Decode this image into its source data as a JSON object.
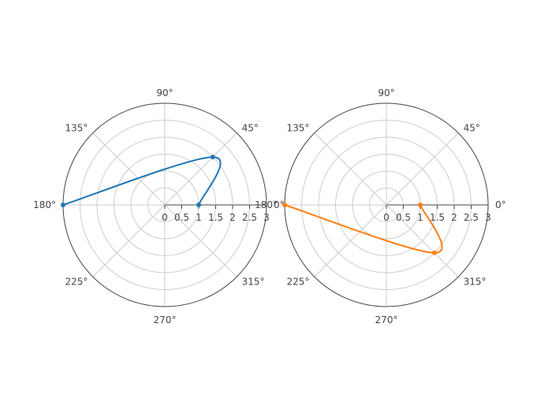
{
  "chart_data": [
    {
      "type": "line",
      "subtype": "polar",
      "radial_axis": {
        "range": [
          0,
          3
        ],
        "tick_labels": [
          "0",
          "0.5",
          "1",
          "1.5",
          "2",
          "2.5",
          "3"
        ]
      },
      "angular_axis": {
        "tick_labels": [
          "0°",
          "45°",
          "90°",
          "135°",
          "180°",
          "225°",
          "270°",
          "315°"
        ]
      },
      "grid": true,
      "series": [
        {
          "color": "#1f77b4",
          "r": [
            1,
            2,
            3
          ],
          "theta": [
            0,
            45,
            180
          ],
          "mode": "lines+markers",
          "line_shape": "spline"
        }
      ]
    },
    {
      "type": "line",
      "subtype": "polar",
      "radial_axis": {
        "range": [
          0,
          3
        ],
        "tick_labels": [
          "0",
          "0.5",
          "1",
          "1.5",
          "2",
          "2.5",
          "3"
        ]
      },
      "angular_axis": {
        "tick_labels": [
          "0°",
          "45°",
          "90°",
          "135°",
          "180°",
          "225°",
          "270°",
          "315°"
        ]
      },
      "grid": true,
      "series": [
        {
          "color": "#ff7f0e",
          "r": [
            1,
            2,
            3
          ],
          "theta": [
            0,
            -45,
            -180
          ],
          "mode": "lines+markers",
          "line_shape": "spline"
        }
      ]
    }
  ]
}
